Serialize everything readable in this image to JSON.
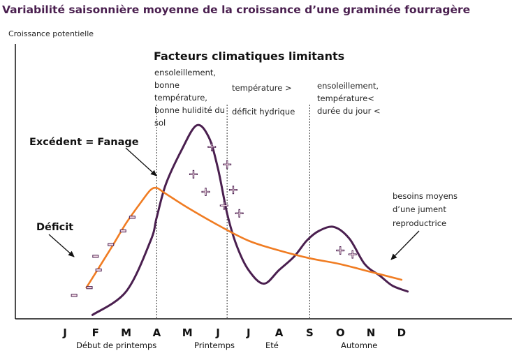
{
  "chart_data": {
    "type": "line",
    "title": "Variabilité saisonnière moyenne de la croissance d’une graminée fourragère",
    "ylabel": "Croissance potentielle",
    "categories": [
      "J",
      "F",
      "M",
      "A",
      "M",
      "J",
      "J",
      "A",
      "S",
      "O",
      "N",
      "D"
    ],
    "seasons": [
      "Début de printemps",
      "Printemps",
      "Eté",
      "Automne"
    ],
    "ylim": [
      0,
      100
    ],
    "series": [
      {
        "name": "",
        "color": "#4a1f4f",
        "x": [
          0.9,
          2.0,
          2.8,
          3.0,
          3.3,
          3.8,
          4.3,
          4.7,
          5.0,
          5.3,
          5.6,
          6.0,
          6.5,
          7.0,
          7.5,
          7.9,
          8.3,
          8.8,
          9.3,
          9.8,
          10.3,
          10.7,
          11.2
        ],
        "values": [
          2,
          14,
          40,
          52,
          69,
          86,
          99,
          93,
          77,
          54,
          38,
          25,
          18,
          25,
          32,
          40,
          45,
          47,
          41,
          28,
          22,
          17,
          14
        ]
      },
      {
        "name": "besoins moyens d’une jument reproductrice",
        "color": "#f07c22",
        "x": [
          0.7,
          1.5,
          2.0,
          2.5,
          2.8,
          3.0,
          3.2,
          3.4,
          4.0,
          5.0,
          6.0,
          7.0,
          8.0,
          9.0,
          10.0,
          11.0
        ],
        "values": [
          16,
          36,
          49,
          60,
          66,
          67,
          65,
          63,
          57,
          48,
          40,
          35,
          31,
          28,
          24,
          20
        ]
      }
    ],
    "dividers_x": [
      3.0,
      5.3,
      8.0
    ],
    "plus_markers": [
      [
        4.8,
        88
      ],
      [
        5.3,
        79
      ],
      [
        4.2,
        74
      ],
      [
        4.6,
        65
      ],
      [
        5.5,
        66
      ],
      [
        5.2,
        58
      ],
      [
        5.7,
        54
      ],
      [
        9.0,
        35
      ],
      [
        9.4,
        33
      ]
    ],
    "minus_markers": [
      [
        2.2,
        52
      ],
      [
        1.9,
        45
      ],
      [
        1.5,
        38
      ],
      [
        1.0,
        32
      ],
      [
        1.1,
        25
      ],
      [
        0.8,
        16
      ],
      [
        0.3,
        12
      ]
    ],
    "annotations": {
      "header": "Facteurs climatiques limitants",
      "col1": [
        "ensoleillement,",
        "bonne",
        "température,",
        "bonne hulidité du",
        "sol"
      ],
      "col2a": "température >",
      "col2b": "déficit hydrique",
      "col3": [
        "ensoleillement,",
        "température<",
        "durée du jour <"
      ],
      "excedent": "Excédent = Fanage",
      "deficit": "Déficit",
      "besoins": [
        "besoins moyens",
        "d’une jument",
        "reproductrice"
      ]
    }
  }
}
